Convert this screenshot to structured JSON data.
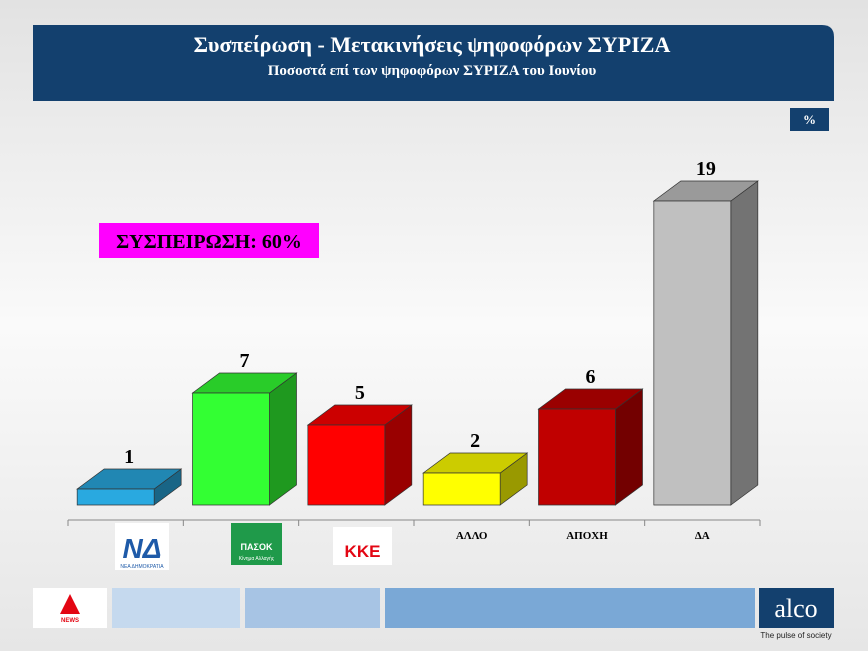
{
  "chart_data": {
    "type": "bar3d",
    "title": "Συσπείρωση - Μετακινήσεις ψηφοφόρων ΣΥΡΙΖΑ",
    "subtitle": "Ποσοστά επί των ψηφοφόρων ΣΥΡΙΖΑ του Ιουνίου",
    "unit": "%",
    "annotation": "ΣΥΣΠΕΙΡΩΣΗ: 60%",
    "categories": [
      "ΝΔ",
      "ΠΑΣΟΚ",
      "ΚΚΕ",
      "ΑΛΛΟ",
      "ΑΠΟΧΗ",
      "ΔΑ"
    ],
    "logo_captions": [
      "ΝΕΑ ΔΗΜΟΚΡΑΤΙΑ",
      "Κίνημα Αλλαγής"
    ],
    "values": [
      1,
      7,
      5,
      2,
      6,
      19
    ],
    "colors": [
      "#29a9e0",
      "#33ff33",
      "#ff0000",
      "#ffff00",
      "#c00000",
      "#c0c0c0"
    ]
  },
  "footer": {
    "news_logo": "NEWS",
    "brand": "alco",
    "slogan": "The pulse of society"
  }
}
